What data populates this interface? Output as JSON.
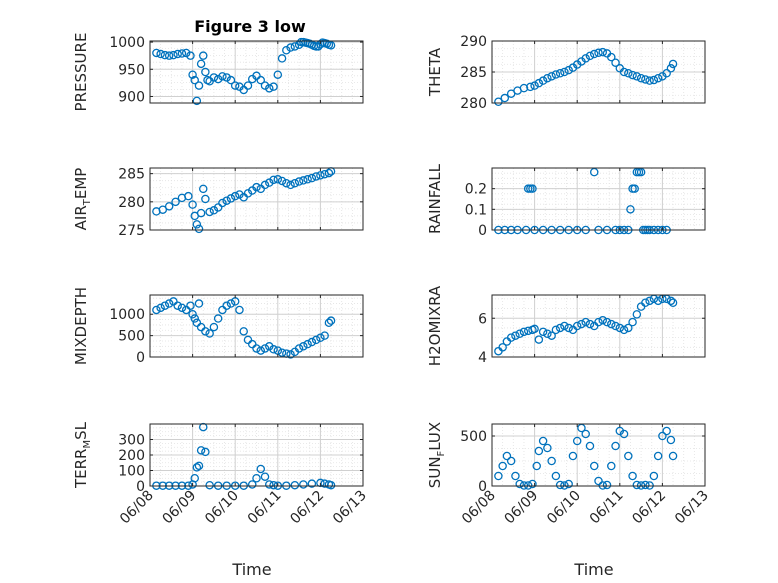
{
  "figure": {
    "title": "Figure 3 low",
    "xlabel": "Time"
  },
  "style": {
    "marker_color": "#0072BD",
    "grid_color": "#d0d0d0",
    "axis_color": "#262626"
  },
  "chart_data": [
    {
      "type": "scatter",
      "ylabel_main": "PRESSURE",
      "ylabel_sub": "",
      "ylim": [
        888,
        1002
      ],
      "yticks": [
        900,
        950,
        1000
      ],
      "grid": true,
      "x": [
        0.15,
        0.25,
        0.35,
        0.45,
        0.55,
        0.65,
        0.75,
        0.85,
        0.95,
        1.0,
        1.05,
        1.1,
        1.15,
        1.2,
        1.25,
        1.3,
        1.35,
        1.4,
        1.5,
        1.6,
        1.7,
        1.8,
        1.9,
        2.0,
        2.1,
        2.2,
        2.3,
        2.4,
        2.5,
        2.6,
        2.7,
        2.8,
        2.9,
        3.0,
        3.1,
        3.2,
        3.3,
        3.4,
        3.5,
        3.55,
        3.6,
        3.65,
        3.7,
        3.75,
        3.8,
        3.85,
        3.9,
        3.95,
        4.0,
        4.05,
        4.1,
        4.15,
        4.2,
        4.25
      ],
      "y": [
        980,
        978,
        976,
        975,
        976,
        978,
        979,
        980,
        975,
        940,
        930,
        892,
        920,
        960,
        975,
        945,
        930,
        928,
        935,
        932,
        937,
        935,
        930,
        920,
        918,
        912,
        920,
        932,
        938,
        930,
        920,
        915,
        918,
        940,
        970,
        985,
        990,
        992,
        995,
        1000,
        1000,
        999,
        998,
        997,
        995,
        993,
        992,
        992,
        996,
        999,
        998,
        997,
        995,
        994
      ]
    },
    {
      "type": "scatter",
      "ylabel_main": "THETA",
      "ylabel_sub": "",
      "ylim": [
        280,
        290
      ],
      "yticks": [
        280,
        285,
        290
      ],
      "grid": true,
      "x": [
        0.15,
        0.3,
        0.45,
        0.6,
        0.75,
        0.9,
        1.0,
        1.1,
        1.2,
        1.3,
        1.4,
        1.5,
        1.6,
        1.7,
        1.8,
        1.9,
        2.0,
        2.1,
        2.2,
        2.3,
        2.4,
        2.5,
        2.6,
        2.7,
        2.8,
        2.9,
        3.0,
        3.1,
        3.2,
        3.3,
        3.4,
        3.5,
        3.6,
        3.7,
        3.8,
        3.9,
        4.0,
        4.1,
        4.2,
        4.25
      ],
      "y": [
        280.2,
        280.8,
        281.5,
        282.0,
        282.4,
        282.6,
        282.8,
        283.2,
        283.6,
        284.0,
        284.3,
        284.6,
        284.8,
        285.0,
        285.3,
        285.7,
        286.2,
        286.7,
        287.2,
        287.6,
        287.9,
        288.1,
        288.2,
        288.0,
        287.4,
        286.5,
        285.6,
        285.0,
        284.8,
        284.5,
        284.3,
        284.0,
        283.8,
        283.6,
        283.7,
        284.0,
        284.3,
        284.8,
        285.6,
        286.3
      ]
    },
    {
      "type": "scatter",
      "ylabel_main": "AIR",
      "ylabel_sub": "T",
      "ylabel_rest": "EMP",
      "ylim": [
        275,
        286
      ],
      "yticks": [
        275,
        280,
        285
      ],
      "grid": true,
      "x": [
        0.15,
        0.3,
        0.45,
        0.6,
        0.75,
        0.9,
        1.0,
        1.05,
        1.1,
        1.15,
        1.2,
        1.25,
        1.3,
        1.4,
        1.5,
        1.6,
        1.7,
        1.8,
        1.9,
        2.0,
        2.1,
        2.2,
        2.3,
        2.4,
        2.5,
        2.6,
        2.7,
        2.8,
        2.9,
        3.0,
        3.1,
        3.2,
        3.3,
        3.4,
        3.5,
        3.6,
        3.7,
        3.8,
        3.9,
        4.0,
        4.1,
        4.2,
        4.25
      ],
      "y": [
        278.3,
        278.6,
        279.2,
        280.0,
        280.7,
        281.0,
        279.5,
        277.5,
        276.0,
        275.2,
        278.0,
        282.3,
        280.5,
        278.2,
        278.5,
        279.0,
        279.8,
        280.2,
        280.6,
        281.0,
        281.3,
        280.8,
        281.5,
        282.0,
        282.6,
        282.3,
        283.0,
        283.4,
        283.9,
        284.0,
        283.7,
        283.3,
        283.0,
        283.3,
        283.6,
        283.8,
        284.0,
        284.2,
        284.5,
        284.7,
        284.9,
        285.1,
        285.4
      ]
    },
    {
      "type": "scatter",
      "ylabel_main": "RAINFALL",
      "ylabel_sub": "",
      "ylim": [
        0,
        0.3
      ],
      "yticks": [
        0,
        0.1,
        0.2
      ],
      "grid": true,
      "x": [
        0.15,
        0.3,
        0.45,
        0.6,
        0.8,
        0.85,
        0.9,
        0.95,
        1.0,
        1.2,
        1.4,
        1.6,
        1.8,
        2.0,
        2.2,
        2.4,
        2.5,
        2.7,
        2.9,
        3.0,
        3.1,
        3.2,
        3.25,
        3.3,
        3.35,
        3.4,
        3.45,
        3.5,
        3.55,
        3.6,
        3.65,
        3.7,
        3.8,
        3.9,
        4.0,
        4.1
      ],
      "y": [
        0,
        0,
        0,
        0,
        0,
        0.2,
        0.2,
        0.2,
        0,
        0,
        0,
        0,
        0,
        0,
        0,
        0.28,
        0,
        0,
        0,
        0,
        0,
        0,
        0.1,
        0.2,
        0.2,
        0.28,
        0.28,
        0.28,
        0,
        0,
        0,
        0,
        0,
        0,
        0,
        0
      ]
    },
    {
      "type": "scatter",
      "ylabel_main": "MIXDEPTH",
      "ylabel_sub": "",
      "ylim": [
        0,
        1450
      ],
      "yticks": [
        0,
        500,
        1000
      ],
      "grid": true,
      "x": [
        0.15,
        0.25,
        0.35,
        0.45,
        0.55,
        0.65,
        0.75,
        0.85,
        0.95,
        1.0,
        1.05,
        1.1,
        1.15,
        1.2,
        1.3,
        1.4,
        1.5,
        1.6,
        1.7,
        1.8,
        1.9,
        2.0,
        2.1,
        2.2,
        2.3,
        2.4,
        2.5,
        2.6,
        2.7,
        2.8,
        2.9,
        3.0,
        3.1,
        3.2,
        3.3,
        3.4,
        3.5,
        3.6,
        3.7,
        3.8,
        3.9,
        4.0,
        4.1,
        4.2,
        4.25
      ],
      "y": [
        1100,
        1150,
        1200,
        1250,
        1300,
        1200,
        1150,
        1100,
        1200,
        1000,
        900,
        800,
        1250,
        700,
        600,
        550,
        700,
        900,
        1100,
        1200,
        1250,
        1300,
        1100,
        600,
        400,
        300,
        200,
        150,
        200,
        250,
        180,
        150,
        100,
        80,
        60,
        120,
        200,
        250,
        300,
        350,
        400,
        450,
        500,
        800,
        850
      ]
    },
    {
      "type": "scatter",
      "ylabel_main": "H2OMIXRA",
      "ylabel_sub": "",
      "ylim": [
        4,
        7.2
      ],
      "yticks": [
        4,
        6
      ],
      "grid": true,
      "x": [
        0.15,
        0.25,
        0.35,
        0.45,
        0.55,
        0.65,
        0.75,
        0.85,
        0.95,
        1.0,
        1.1,
        1.2,
        1.3,
        1.4,
        1.5,
        1.6,
        1.7,
        1.8,
        1.9,
        2.0,
        2.1,
        2.2,
        2.3,
        2.4,
        2.5,
        2.6,
        2.7,
        2.8,
        2.9,
        3.0,
        3.1,
        3.2,
        3.3,
        3.4,
        3.5,
        3.6,
        3.7,
        3.8,
        3.9,
        4.0,
        4.1,
        4.2,
        4.25
      ],
      "y": [
        4.3,
        4.5,
        4.8,
        5.0,
        5.1,
        5.2,
        5.3,
        5.35,
        5.4,
        5.45,
        4.9,
        5.3,
        5.2,
        5.1,
        5.4,
        5.5,
        5.6,
        5.5,
        5.4,
        5.6,
        5.7,
        5.8,
        5.7,
        5.6,
        5.8,
        5.9,
        5.8,
        5.7,
        5.6,
        5.5,
        5.4,
        5.5,
        5.8,
        6.2,
        6.6,
        6.8,
        6.9,
        7.0,
        6.9,
        7.0,
        7.0,
        6.9,
        6.8
      ]
    },
    {
      "type": "scatter",
      "ylabel_main": "TERR",
      "ylabel_sub": "M",
      "ylabel_rest": "SL",
      "ylim": [
        0,
        400
      ],
      "yticks": [
        0,
        100,
        200,
        300
      ],
      "grid": true,
      "x": [
        0.15,
        0.3,
        0.45,
        0.6,
        0.75,
        0.9,
        1.0,
        1.05,
        1.1,
        1.15,
        1.2,
        1.25,
        1.3,
        1.4,
        1.6,
        1.8,
        2.0,
        2.2,
        2.4,
        2.5,
        2.6,
        2.7,
        2.8,
        2.9,
        3.0,
        3.2,
        3.4,
        3.6,
        3.8,
        4.0,
        4.1,
        4.2,
        4.25
      ],
      "y": [
        2,
        2,
        2,
        2,
        2,
        2,
        10,
        50,
        120,
        130,
        230,
        380,
        220,
        5,
        2,
        2,
        2,
        2,
        10,
        50,
        110,
        60,
        10,
        5,
        2,
        2,
        5,
        10,
        15,
        20,
        15,
        10,
        5
      ]
    },
    {
      "type": "scatter",
      "ylabel_main": "SUN",
      "ylabel_sub": "F",
      "ylabel_rest": "LUX",
      "ylim": [
        0,
        620
      ],
      "yticks": [
        0,
        500
      ],
      "grid": true,
      "x": [
        0.15,
        0.25,
        0.35,
        0.45,
        0.55,
        0.65,
        0.75,
        0.85,
        0.95,
        1.05,
        1.1,
        1.2,
        1.3,
        1.4,
        1.5,
        1.6,
        1.7,
        1.8,
        1.9,
        2.0,
        2.1,
        2.2,
        2.3,
        2.4,
        2.5,
        2.6,
        2.7,
        2.8,
        2.9,
        3.0,
        3.1,
        3.2,
        3.3,
        3.4,
        3.5,
        3.6,
        3.7,
        3.8,
        3.9,
        4.0,
        4.1,
        4.2,
        4.25
      ],
      "y": [
        100,
        200,
        300,
        250,
        100,
        20,
        5,
        5,
        20,
        200,
        350,
        450,
        380,
        250,
        100,
        10,
        5,
        20,
        300,
        450,
        580,
        520,
        400,
        200,
        50,
        5,
        10,
        200,
        400,
        550,
        520,
        300,
        100,
        10,
        5,
        10,
        5,
        100,
        300,
        500,
        550,
        460,
        300
      ]
    }
  ],
  "xaxis": {
    "xlim": [
      0,
      5
    ],
    "ticks": [
      0,
      1,
      2,
      3,
      4,
      5
    ],
    "tick_labels": [
      "06/08",
      "06/09",
      "06/10",
      "06/11",
      "06/12",
      "06/13"
    ]
  }
}
